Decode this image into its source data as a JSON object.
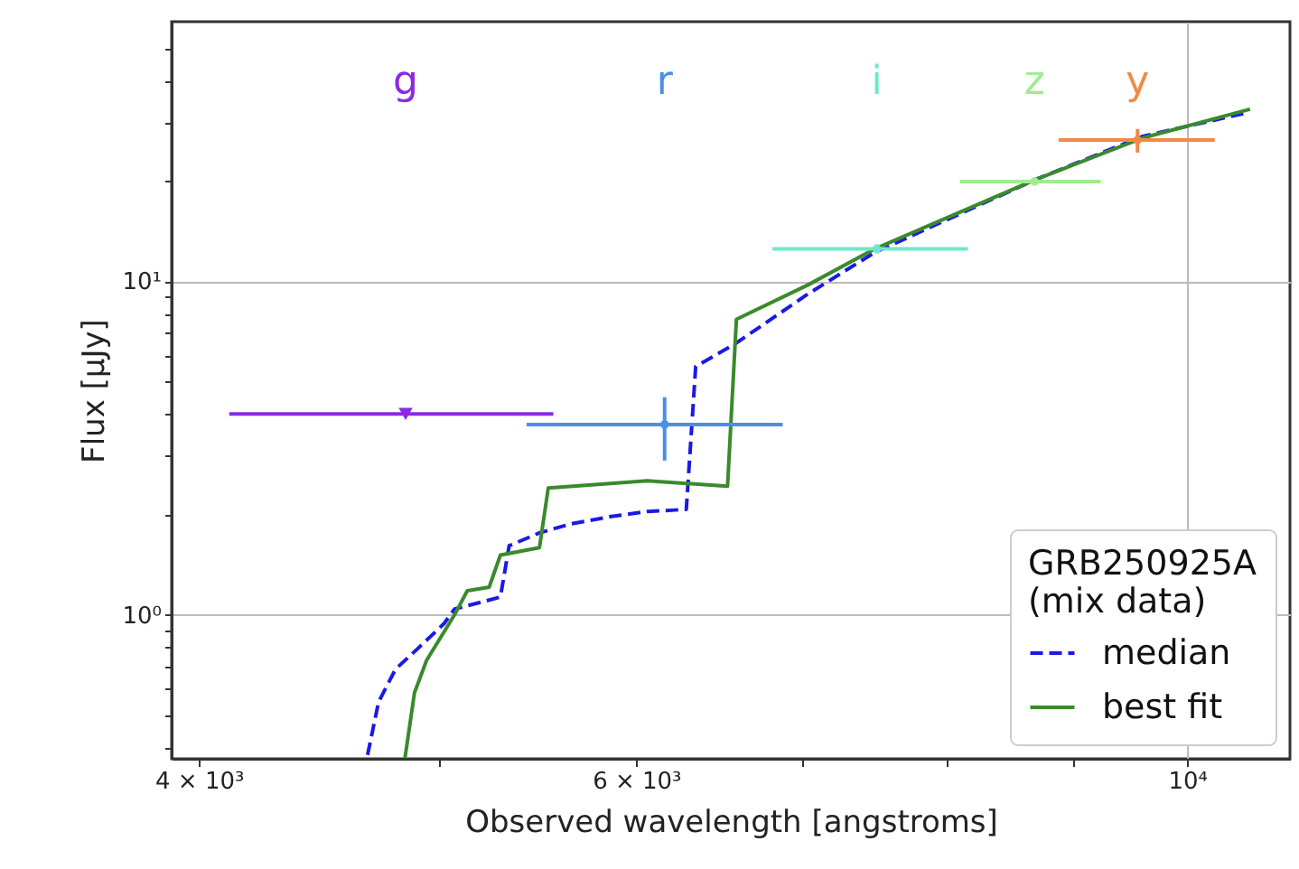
{
  "chart_data": {
    "type": "line",
    "xlabel": "Observed wavelength [angstroms]",
    "ylabel": "Flux [μJy]",
    "legend_title": "GRB250925A\n (mix data)",
    "log": "xy",
    "grid": true,
    "legend": "bottom right",
    "xlim": [
      3900,
      11000
    ],
    "ylim": [
      0.37,
      60
    ],
    "xticks": [
      {
        "value": 4000,
        "label": "4 × 10³"
      },
      {
        "value": 5000,
        "label": null
      },
      {
        "value": 6000,
        "label": "6 × 10³"
      },
      {
        "value": 7000,
        "label": null
      },
      {
        "value": 8000,
        "label": null
      },
      {
        "value": 9000,
        "label": null
      },
      {
        "value": 10000,
        "label": "10⁴"
      }
    ],
    "yticks": [
      {
        "value": 0.4,
        "label": null
      },
      {
        "value": 0.5,
        "label": null
      },
      {
        "value": 0.6,
        "label": null
      },
      {
        "value": 0.7,
        "label": null
      },
      {
        "value": 0.8,
        "label": null
      },
      {
        "value": 0.9,
        "label": null
      },
      {
        "value": 1,
        "label": "10⁰"
      },
      {
        "value": 2,
        "label": null
      },
      {
        "value": 3,
        "label": null
      },
      {
        "value": 4,
        "label": null
      },
      {
        "value": 5,
        "label": null
      },
      {
        "value": 6,
        "label": null
      },
      {
        "value": 7,
        "label": null
      },
      {
        "value": 8,
        "label": null
      },
      {
        "value": 9,
        "label": null
      },
      {
        "value": 10,
        "label": "10¹"
      },
      {
        "value": 20,
        "label": null
      },
      {
        "value": 30,
        "label": null
      },
      {
        "value": 40,
        "label": null
      },
      {
        "value": 50,
        "label": null
      }
    ],
    "series": [
      {
        "name": "median",
        "color": "#1a1ae6",
        "line_style": "dashed",
        "x": [
          4677,
          4725,
          4800,
          4907,
          5020,
          5070,
          5290,
          5333,
          5485,
          5643,
          5862,
          6061,
          6285,
          6340,
          6584,
          7036,
          7485,
          8692,
          9597,
          10570
        ],
        "values": [
          0.38,
          0.548,
          0.687,
          0.8,
          0.94,
          1.04,
          1.13,
          1.61,
          1.76,
          1.87,
          1.97,
          2.04,
          2.07,
          5.55,
          6.53,
          9.16,
          12.2,
          20.2,
          27.2,
          32.0
        ]
      },
      {
        "name": "best fit",
        "color": "#3a8a2c",
        "line_style": "solid",
        "x": [
          4842,
          4885,
          4940,
          5070,
          5130,
          5235,
          5290,
          5485,
          5530,
          6061,
          6530,
          6584,
          7036,
          7485,
          8692,
          9597,
          10600
        ],
        "values": [
          0.372,
          0.584,
          0.73,
          1.0,
          1.18,
          1.21,
          1.51,
          1.59,
          2.4,
          2.52,
          2.43,
          7.69,
          9.75,
          12.5,
          20.2,
          26.9,
          32.8
        ]
      },
      {
        "name": "g",
        "type": "scatter",
        "color": "#8a2be2",
        "marker": "triangle",
        "x": [
          4845
        ],
        "values": [
          4.0
        ],
        "xerrors": [
          [
            4114,
            5556
          ]
        ]
      },
      {
        "name": "r",
        "type": "scatter",
        "color": "#4a90e2",
        "x": [
          6160
        ],
        "values": [
          3.72
        ],
        "xerrors": [
          [
            5420,
            6873
          ]
        ],
        "errors": [
          [
            2.9,
            4.49
          ]
        ]
      },
      {
        "name": "i",
        "type": "scatter",
        "color": "#6ee8c8",
        "x": [
          7500
        ],
        "values": [
          12.5
        ],
        "xerrors": [
          [
            6808,
            8160
          ]
        ],
        "errors": [
          [
            12.1,
            12.9
          ]
        ]
      },
      {
        "name": "z",
        "type": "scatter",
        "color": "#a0eb90",
        "x": [
          8680
        ],
        "values": [
          19.9
        ],
        "xerrors": [
          [
            8100,
            9230
          ]
        ],
        "errors": [
          [
            19.5,
            20.4
          ]
        ]
      },
      {
        "name": "y",
        "type": "scatter",
        "color": "#f08a48",
        "x": [
          9550
        ],
        "values": [
          26.5
        ],
        "xerrors": [
          [
            8876,
            10260
          ]
        ],
        "errors": [
          [
            24.3,
            28.6
          ]
        ]
      }
    ]
  }
}
